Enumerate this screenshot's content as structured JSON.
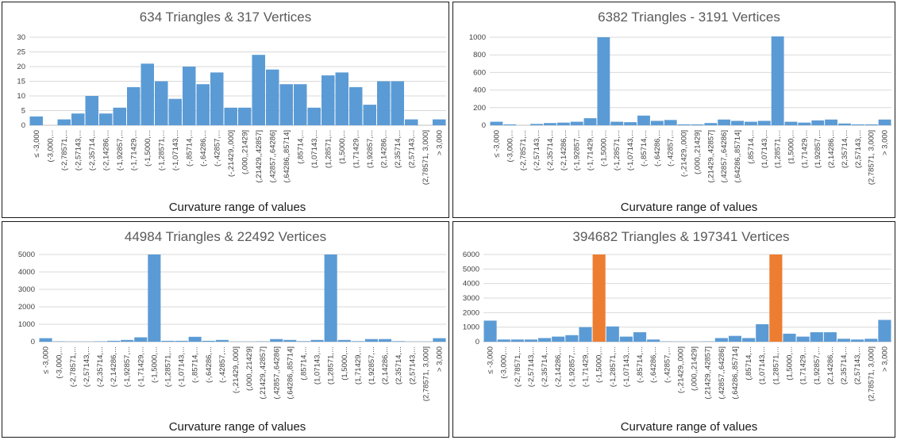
{
  "colors": {
    "bar": "#5b9bd5",
    "highlight": "#ed7d31"
  },
  "categories": [
    "≤ -3,000",
    "(-3,000,...",
    "(-2,78571,...",
    "(-2,57143,...",
    "(-2,35714,...",
    "(-2,14286,...",
    "(-1,92857,...",
    "(-1,71429,...",
    "(-1,5000,...",
    "(-1,28571,...",
    "(-1,07143,...",
    "(-,85714,...",
    "(-,64286,...",
    "(-,42857,...",
    "(-,21429,,000]",
    "(,000,,21429]",
    "(,21429,,42857]",
    "(,42857,,64286]",
    "(,64286,,85714]",
    "(,85714,...",
    "(1,07143,...",
    "(1,28571,...",
    "(1,5000,...",
    "(1,71429,...",
    "(1,92857,...",
    "(2,14286,...",
    "(2,35714,...",
    "(2,57143,...",
    "(2,78571, 3,000]",
    "> 3,000"
  ],
  "chart_data": [
    {
      "type": "bar",
      "title": "634 Triangles & 317 Vertices",
      "xlabel": "Curvature range of values",
      "ylabel": "",
      "ylim": [
        0,
        30
      ],
      "yticks": [
        "0",
        "5",
        "10",
        "15",
        "20",
        "25",
        "30"
      ],
      "grid": true,
      "values": [
        3,
        0,
        2,
        4,
        10,
        4,
        6,
        13,
        21,
        15,
        9,
        20,
        14,
        18,
        6,
        6,
        24,
        19,
        14,
        14,
        6,
        17,
        18,
        13,
        7,
        15,
        15,
        2,
        0,
        2
      ],
      "highlight": []
    },
    {
      "type": "bar",
      "title": "6382 Triangles - 3191 Vertices",
      "xlabel": "Curvature range of values",
      "ylabel": "",
      "ylim": [
        0,
        1000
      ],
      "yticks": [
        "0",
        "200",
        "400",
        "600",
        "800",
        "1000"
      ],
      "grid": true,
      "values": [
        40,
        10,
        0,
        15,
        25,
        30,
        40,
        80,
        1000,
        40,
        35,
        110,
        50,
        60,
        10,
        10,
        25,
        65,
        50,
        40,
        50,
        1010,
        40,
        30,
        55,
        65,
        20,
        10,
        10,
        65
      ],
      "highlight": []
    },
    {
      "type": "bar",
      "title": "44984 Triangles & 22492 Vertices",
      "xlabel": "Curvature range of values",
      "ylabel": "",
      "ylim": [
        0,
        5000
      ],
      "yticks": [
        "0",
        "1000",
        "2000",
        "3000",
        "4000",
        "5000"
      ],
      "grid": true,
      "values": [
        200,
        20,
        10,
        10,
        20,
        50,
        100,
        250,
        5000,
        50,
        50,
        280,
        50,
        100,
        10,
        10,
        20,
        150,
        100,
        30,
        100,
        5000,
        100,
        30,
        150,
        150,
        30,
        10,
        10,
        200
      ],
      "highlight": []
    },
    {
      "type": "bar",
      "title": "394682 Triangles & 197341 Vertices",
      "xlabel": "Curvature range of values",
      "ylabel": "",
      "ylim": [
        0,
        6000
      ],
      "yticks": [
        "0",
        "1000",
        "2000",
        "3000",
        "4000",
        "5000",
        "6000"
      ],
      "grid": true,
      "values": [
        1450,
        150,
        150,
        150,
        250,
        350,
        450,
        1000,
        6000,
        1050,
        350,
        650,
        150,
        20,
        10,
        10,
        20,
        250,
        400,
        250,
        1200,
        6000,
        550,
        350,
        650,
        650,
        200,
        150,
        200,
        1500
      ],
      "highlight": [
        8,
        21
      ]
    }
  ]
}
